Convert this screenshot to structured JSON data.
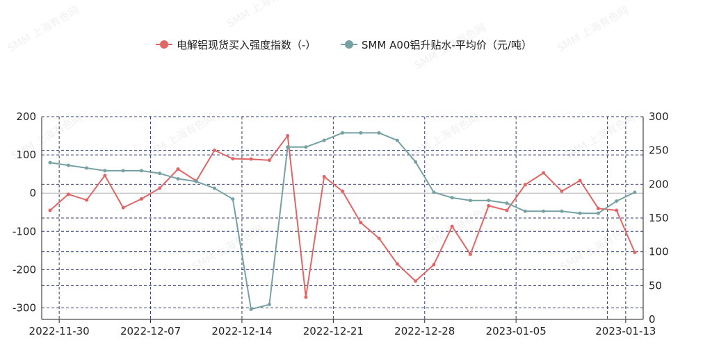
{
  "watermark_text": "SMM 上海有色网",
  "colors": {
    "series_red": "#e06666",
    "series_teal": "#76a1a3",
    "grid": "#2f3a7a",
    "zero_line": "#b0b0b0"
  },
  "chart_data": {
    "type": "line",
    "legend_position": "top-center",
    "grid": true,
    "x_dates": [
      "2022-11-29",
      "2022-11-30",
      "2022-12-01",
      "2022-12-02",
      "2022-12-05",
      "2022-12-06",
      "2022-12-07",
      "2022-12-08",
      "2022-12-09",
      "2022-12-12",
      "2022-12-13",
      "2022-12-14",
      "2022-12-15",
      "2022-12-16",
      "2022-12-19",
      "2022-12-20",
      "2022-12-21",
      "2022-12-22",
      "2022-12-23",
      "2022-12-26",
      "2022-12-27",
      "2022-12-28",
      "2022-12-29",
      "2022-12-30",
      "2023-01-03",
      "2023-01-04",
      "2023-01-05",
      "2023-01-06",
      "2023-01-09",
      "2023-01-10",
      "2023-01-11",
      "2023-01-12",
      "2023-01-13"
    ],
    "x_tick_labels": [
      "2022-11-30",
      "2022-12-07",
      "2022-12-14",
      "2022-12-21",
      "2022-12-28",
      "2023-01-05",
      "2023-01-13"
    ],
    "x_tick_indices": [
      0.5,
      5.5,
      10.5,
      15.5,
      20.5,
      25.5,
      31.5
    ],
    "x_vertical_grid_indices": [
      0.5,
      5.5,
      10.5,
      15.5,
      20.5,
      25.5,
      30.5,
      31.5
    ],
    "y_left": {
      "min": -330,
      "max": 200,
      "ticks": [
        200,
        100,
        0,
        -100,
        -200,
        -300
      ],
      "tick_labels": [
        "200",
        "100",
        "0",
        "-100",
        "-200",
        "-300"
      ]
    },
    "y_right": {
      "min": 0,
      "max": 300,
      "ticks": [
        300,
        250,
        200,
        150,
        100,
        50,
        0
      ],
      "tick_labels": [
        "300",
        "250",
        "200",
        "150",
        "100",
        "50",
        "0"
      ]
    },
    "series": [
      {
        "name": "电解铝现货买入强度指数（-）",
        "axis": "left",
        "values": [
          -45,
          -3,
          -18,
          46,
          -38,
          -15,
          13,
          63,
          32,
          112,
          90,
          89,
          86,
          150,
          -272,
          43,
          5,
          -77,
          -118,
          -185,
          -230,
          -187,
          -87,
          -160,
          -33,
          -45,
          22,
          53,
          5,
          33,
          -40,
          -45,
          -155
        ]
      },
      {
        "name": "SMM A00铝升贴水-平均价（元/吨）",
        "axis": "right",
        "values": [
          232,
          228,
          224,
          220,
          220,
          220,
          216,
          208,
          204,
          194,
          178,
          15,
          22,
          255,
          255,
          265,
          276,
          276,
          276,
          265,
          233,
          188,
          180,
          176,
          176,
          172,
          160,
          160,
          160,
          157,
          157,
          175,
          188
        ]
      }
    ]
  }
}
